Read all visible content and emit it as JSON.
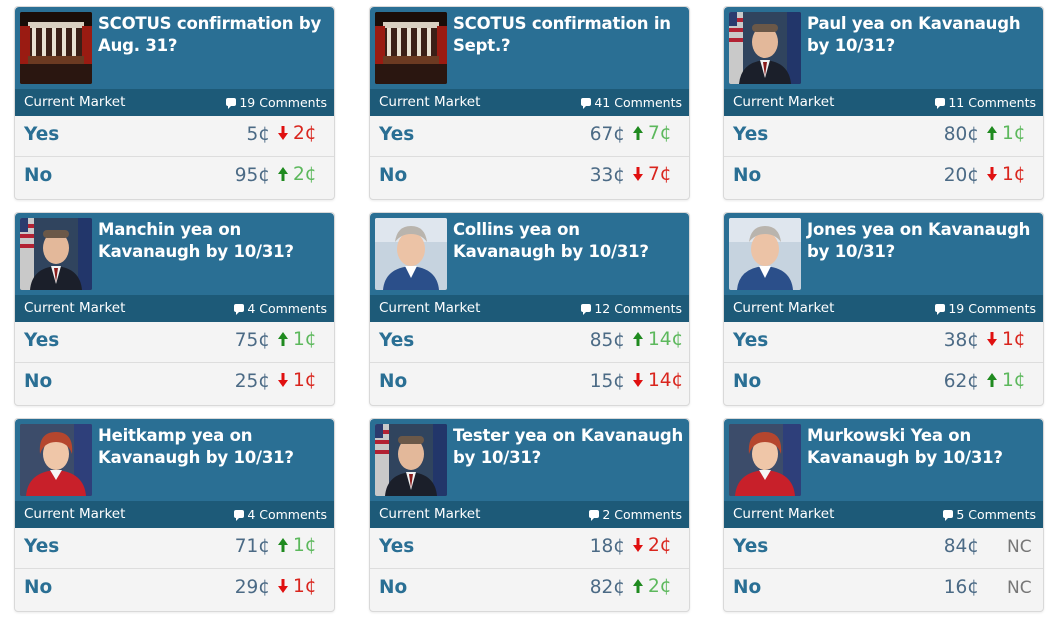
{
  "header_label": "Current Market",
  "markets": [
    {
      "title": "SCOTUS confirmation by Aug. 31?",
      "comments": "19 Comments",
      "thumb": "courtroom",
      "yes": {
        "label": "Yes",
        "price": "5¢",
        "dir": "down",
        "change": "2¢"
      },
      "no": {
        "label": "No",
        "price": "95¢",
        "dir": "up",
        "change": "2¢"
      }
    },
    {
      "title": "SCOTUS confirmation in Sept.?",
      "comments": "41 Comments",
      "thumb": "courtroom",
      "yes": {
        "label": "Yes",
        "price": "67¢",
        "dir": "up",
        "change": "7¢"
      },
      "no": {
        "label": "No",
        "price": "33¢",
        "dir": "down",
        "change": "7¢"
      }
    },
    {
      "title": "Paul yea on Kavanaugh by 10/31?",
      "comments": "11 Comments",
      "thumb": "senator-flags",
      "yes": {
        "label": "Yes",
        "price": "80¢",
        "dir": "up",
        "change": "1¢"
      },
      "no": {
        "label": "No",
        "price": "20¢",
        "dir": "down",
        "change": "1¢"
      }
    },
    {
      "title": "Manchin yea on Kavanaugh by 10/31?",
      "comments": "4 Comments",
      "thumb": "senator-flags",
      "yes": {
        "label": "Yes",
        "price": "75¢",
        "dir": "up",
        "change": "1¢"
      },
      "no": {
        "label": "No",
        "price": "25¢",
        "dir": "down",
        "change": "1¢"
      }
    },
    {
      "title": "Collins yea on Kavanaugh by 10/31?",
      "comments": "12 Comments",
      "thumb": "senator-light",
      "yes": {
        "label": "Yes",
        "price": "85¢",
        "dir": "up",
        "change": "14¢"
      },
      "no": {
        "label": "No",
        "price": "15¢",
        "dir": "down",
        "change": "14¢"
      }
    },
    {
      "title": "Jones yea on Kavanaugh by 10/31?",
      "comments": "19 Comments",
      "thumb": "senator-light",
      "yes": {
        "label": "Yes",
        "price": "38¢",
        "dir": "down",
        "change": "1¢"
      },
      "no": {
        "label": "No",
        "price": "62¢",
        "dir": "up",
        "change": "1¢"
      }
    },
    {
      "title": "Heitkamp yea on Kavanaugh by 10/31?",
      "comments": "4 Comments",
      "thumb": "senator-red",
      "yes": {
        "label": "Yes",
        "price": "71¢",
        "dir": "up",
        "change": "1¢"
      },
      "no": {
        "label": "No",
        "price": "29¢",
        "dir": "down",
        "change": "1¢"
      }
    },
    {
      "title": "Tester yea on Kavanaugh by 10/31?",
      "comments": "2 Comments",
      "thumb": "senator-flags",
      "yes": {
        "label": "Yes",
        "price": "18¢",
        "dir": "down",
        "change": "2¢"
      },
      "no": {
        "label": "No",
        "price": "82¢",
        "dir": "up",
        "change": "2¢"
      }
    },
    {
      "title": "Murkowski Yea on Kavanaugh by 10/31?",
      "comments": "5 Comments",
      "thumb": "senator-red",
      "yes": {
        "label": "Yes",
        "price": "84¢",
        "dir": "nc",
        "change": "NC"
      },
      "no": {
        "label": "No",
        "price": "16¢",
        "dir": "nc",
        "change": "NC"
      }
    }
  ],
  "colors": {
    "header": "#2a6f94",
    "bar": "#1d5a78",
    "up": "#5cb85c",
    "down": "#d9251d",
    "arrow_up": "#1f8a1f",
    "arrow_down": "#e01010"
  }
}
